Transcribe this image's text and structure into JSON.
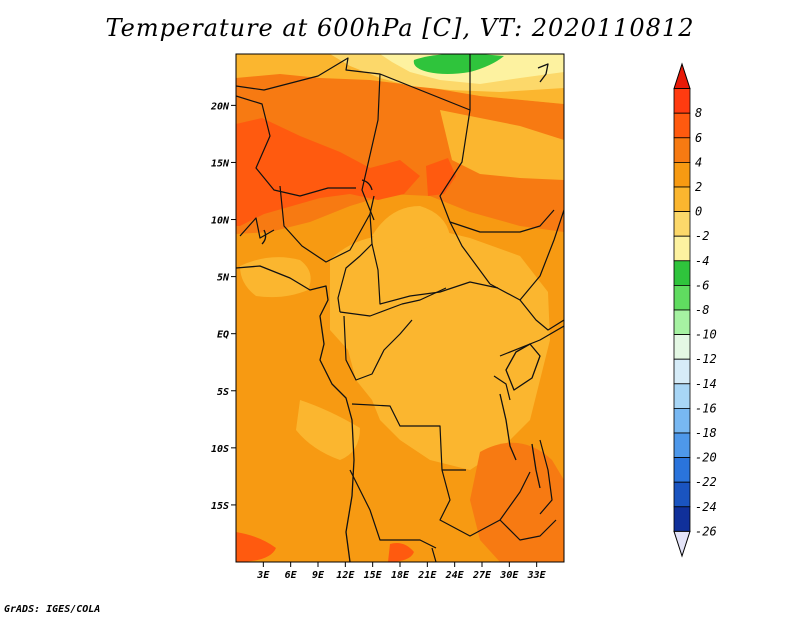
{
  "title": "Temperature at 600hPa [C], VT: 2020110812",
  "footer": "GrADS: IGES/COLA",
  "map": {
    "lon_range": [
      0,
      36
    ],
    "lat_range": [
      -20,
      24.5
    ],
    "lat_ticks": [
      {
        "value": 20,
        "label": "20N"
      },
      {
        "value": 15,
        "label": "15N"
      },
      {
        "value": 10,
        "label": "10N"
      },
      {
        "value": 5,
        "label": "5N"
      },
      {
        "value": 0,
        "label": "EQ"
      },
      {
        "value": -5,
        "label": "5S"
      },
      {
        "value": -10,
        "label": "10S"
      },
      {
        "value": -15,
        "label": "15S"
      }
    ],
    "lon_ticks": [
      {
        "value": 3,
        "label": "3E"
      },
      {
        "value": 6,
        "label": "6E"
      },
      {
        "value": 9,
        "label": "9E"
      },
      {
        "value": 12,
        "label": "12E"
      },
      {
        "value": 15,
        "label": "15E"
      },
      {
        "value": 18,
        "label": "18E"
      },
      {
        "value": 21,
        "label": "21E"
      },
      {
        "value": 24,
        "label": "24E"
      },
      {
        "value": 27,
        "label": "27E"
      },
      {
        "value": 30,
        "label": "30E"
      },
      {
        "value": 33,
        "label": "33E"
      }
    ]
  },
  "colorbar": {
    "levels": [
      {
        "label": "8",
        "color": "#ff3b10"
      },
      {
        "label": "6",
        "color": "#ff5a0f"
      },
      {
        "label": "4",
        "color": "#f77a12"
      },
      {
        "label": "2",
        "color": "#f79a12"
      },
      {
        "label": "0",
        "color": "#fbb62f"
      },
      {
        "label": "-2",
        "color": "#fcd86a"
      },
      {
        "label": "-4",
        "color": "#fdf2a0"
      },
      {
        "label": "-6",
        "color": "#2fc43c"
      },
      {
        "label": "-8",
        "color": "#60dc60"
      },
      {
        "label": "-10",
        "color": "#a6f2a2"
      },
      {
        "label": "-12",
        "color": "#e4f8e4"
      },
      {
        "label": "-14",
        "color": "#d6ecf8"
      },
      {
        "label": "-16",
        "color": "#a8d6f6"
      },
      {
        "label": "-18",
        "color": "#78b8f2"
      },
      {
        "label": "-20",
        "color": "#4e98ea"
      },
      {
        "label": "-22",
        "color": "#2a74dc"
      },
      {
        "label": "-24",
        "color": "#1a54c0"
      },
      {
        "label": "-26",
        "color": "#10309a"
      }
    ],
    "top_color": "#e81a08",
    "bottom_tail_color": "#e4e4f8",
    "bottom_end_color": "#080870"
  }
}
